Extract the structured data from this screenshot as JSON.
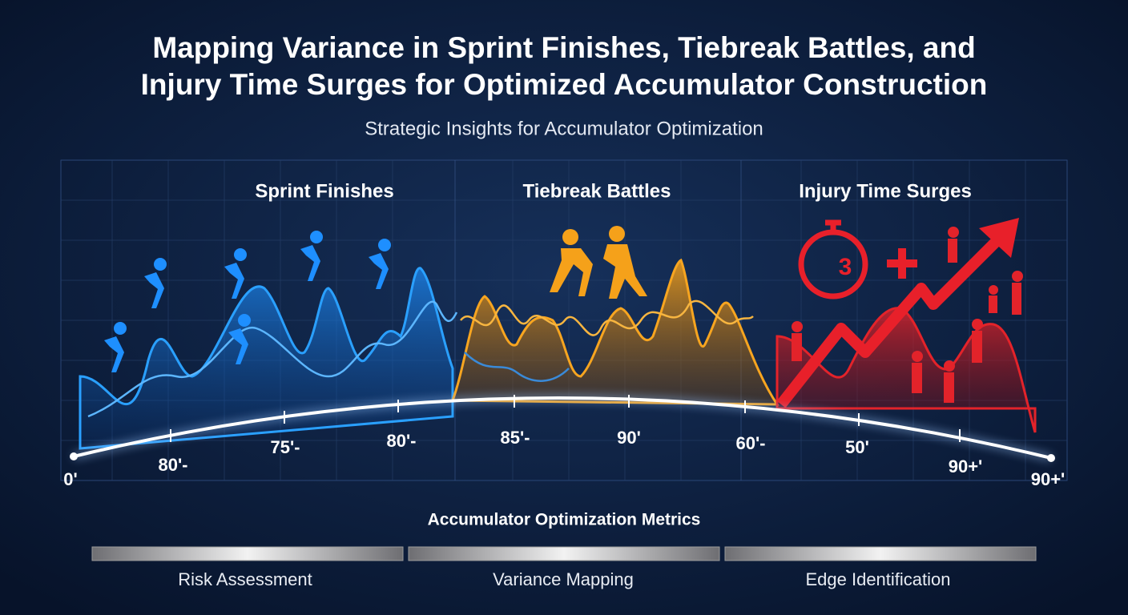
{
  "header": {
    "title_lines": [
      "Mapping Variance in Sprint Finishes, Tiebreak Battles, and",
      "Injury Time Surges for Optimized Accumulator Construction"
    ],
    "subtitle": "Strategic Insights for Accumulator Optimization"
  },
  "panels": [
    {
      "title": "Sprint Finishes"
    },
    {
      "title": "Tiebreak Battles"
    },
    {
      "title": "Injury Time Surges"
    }
  ],
  "stopwatch_digit": "3",
  "timeline": {
    "labels": [
      "0'",
      "80'-",
      "75'-",
      "80'-",
      "85'-",
      "90'",
      "60'-",
      "50'",
      "90+'",
      "90+'"
    ]
  },
  "metrics": {
    "title": "Accumulator Optimization Metrics",
    "items": [
      "Risk Assessment",
      "Variance Mapping",
      "Edge Identification"
    ]
  }
}
